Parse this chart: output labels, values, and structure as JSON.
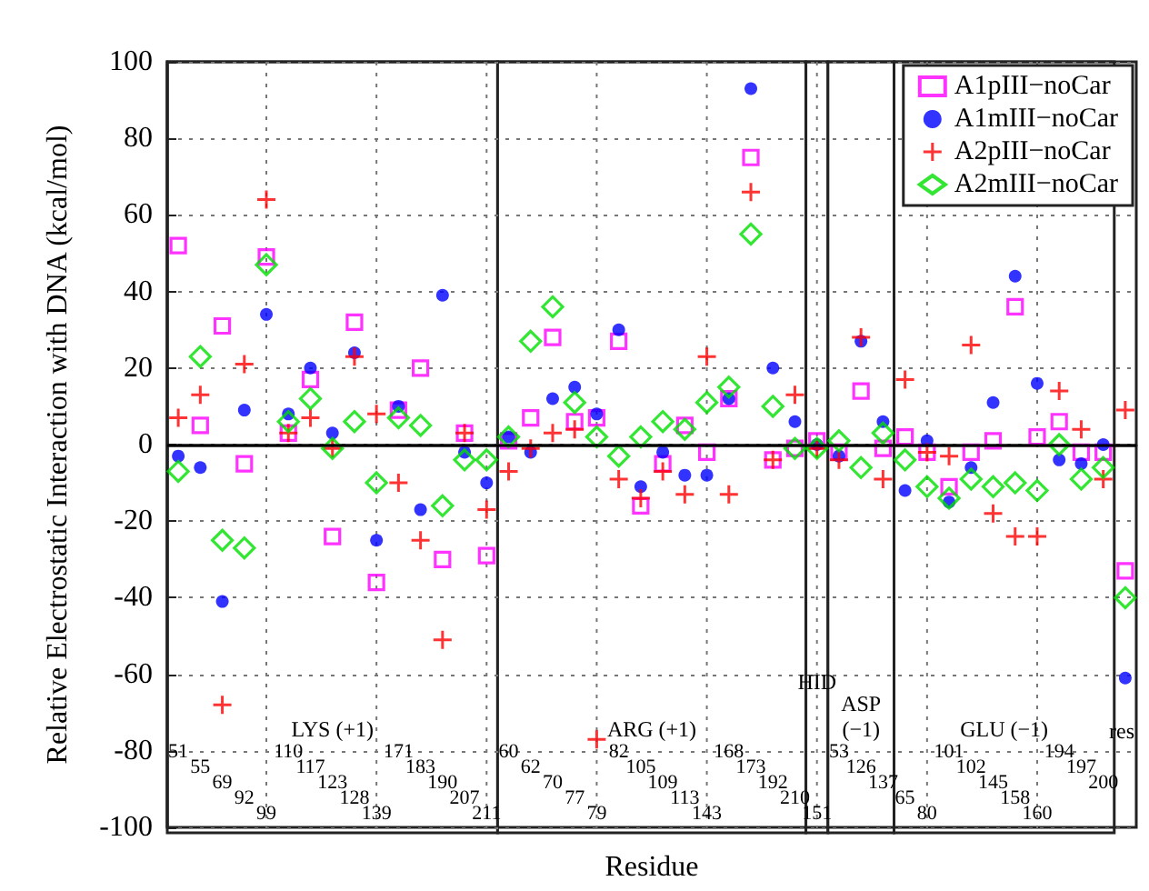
{
  "chart_data": {
    "type": "scatter",
    "xlabel": "Residue",
    "ylabel": "Relative Electrostatic Interaction with DNA (kcal/mol)",
    "categories": [
      "51",
      "55",
      "69",
      "92",
      "99",
      "110",
      "117",
      "123",
      "128",
      "139",
      "171",
      "183",
      "190",
      "207",
      "211",
      "60",
      "62",
      "70",
      "77",
      "79",
      "82",
      "105",
      "109",
      "113",
      "143",
      "168",
      "173",
      "192",
      "210",
      "151",
      "53",
      "126",
      "137",
      "65",
      "80",
      "101",
      "102",
      "145",
      "158",
      "160",
      "194",
      "197",
      "200",
      null
    ],
    "series": [
      {
        "name": "A1pIII−noCar",
        "color": "#ff00ff",
        "marker": "square",
        "values": [
          52,
          5,
          31,
          -5,
          49,
          3,
          17,
          -24,
          32,
          -36,
          9,
          20,
          -30,
          3,
          -29,
          1,
          7,
          28,
          6,
          7,
          27,
          -16,
          -5,
          5,
          -2,
          12,
          75,
          -4,
          -1,
          1,
          -2,
          14,
          -1,
          2,
          -2,
          -11,
          -2,
          1,
          36,
          2,
          6,
          -2,
          -2,
          -33
        ]
      },
      {
        "name": "A1mIII−noCar",
        "color": "#0000ff",
        "marker": "circle",
        "values": [
          -3,
          -6,
          -41,
          9,
          34,
          8,
          20,
          3,
          24,
          -25,
          10,
          -17,
          39,
          -2,
          -10,
          2,
          -2,
          12,
          15,
          8,
          30,
          -11,
          -2,
          -8,
          -8,
          12,
          93,
          20,
          6,
          0,
          -3,
          27,
          6,
          -12,
          1,
          -15,
          -6,
          11,
          44,
          16,
          -4,
          -5,
          0,
          -61
        ]
      },
      {
        "name": "A2pIII−noCar",
        "color": "#ff0000",
        "marker": "cross",
        "values": [
          7,
          13,
          -68,
          21,
          64,
          3,
          7,
          -1,
          23,
          8,
          -10,
          -25,
          -51,
          3,
          -17,
          -7,
          -1,
          3,
          4,
          -77,
          -9,
          -14,
          -7,
          -13,
          23,
          -13,
          66,
          -4,
          13,
          -1,
          -4,
          28,
          -9,
          17,
          -2,
          -3,
          26,
          -18,
          -24,
          -24,
          14,
          4,
          -9,
          9
        ]
      },
      {
        "name": "A2mIII−noCar",
        "color": "#00e000",
        "marker": "diamond",
        "values": [
          -7,
          23,
          -25,
          -27,
          47,
          6,
          12,
          -1,
          6,
          -10,
          7,
          5,
          -16,
          -4,
          -4,
          2,
          27,
          36,
          11,
          2,
          -3,
          2,
          6,
          4,
          11,
          15,
          55,
          10,
          -1,
          -1,
          1,
          -6,
          3,
          -4,
          -11,
          -14,
          -9,
          -11,
          -10,
          -12,
          0,
          -9,
          -6,
          -40
        ]
      }
    ],
    "ylim": [
      -100,
      100
    ],
    "yticks": [
      -100,
      -80,
      -60,
      -40,
      -20,
      0,
      20,
      40,
      60,
      80,
      100
    ],
    "grid": true,
    "legend": "top right",
    "ref_lines": [
      {
        "axis": "y",
        "value": 0,
        "color": "#000000"
      }
    ],
    "bands": [
      {
        "axis": "x",
        "from": "51",
        "to": "211",
        "label": "LYS (+1)",
        "color": "#ffffff"
      },
      {
        "axis": "x",
        "from": "60",
        "to": "210",
        "label": "ARG (+1)",
        "color": "#ffffff"
      },
      {
        "axis": "x",
        "from": "151",
        "to": "151",
        "label": "HID",
        "color": "#ffffff"
      },
      {
        "axis": "x",
        "from": "53",
        "to": "137",
        "label": "ASP (−1)",
        "color": "#ffffff"
      },
      {
        "axis": "x",
        "from": "65",
        "to": "200",
        "label": "GLU (−1)",
        "color": "#ffffff"
      }
    ],
    "annotations": [
      "res"
    ]
  }
}
